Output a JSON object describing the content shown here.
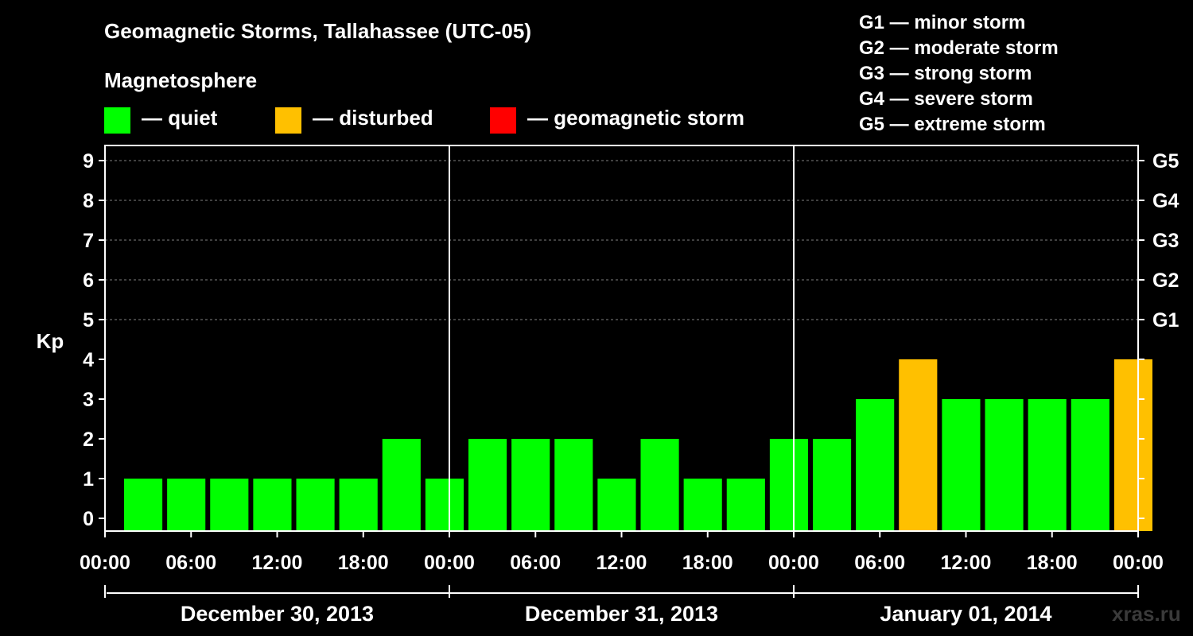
{
  "header": {
    "title": "Geomagnetic Storms, Tallahassee (UTC-05)",
    "subtitle": "Magnetosphere"
  },
  "legend": [
    {
      "label": "— quiet",
      "color": "#00ff00"
    },
    {
      "label": "— disturbed",
      "color": "#ffc000"
    },
    {
      "label": "— geomagnetic storm",
      "color": "#ff0000"
    }
  ],
  "storm_levels": [
    "G1 — minor storm",
    "G2 — moderate storm",
    "G3 — strong storm",
    "G4 — severe storm",
    "G5 — extreme storm"
  ],
  "watermark": "xras.ru",
  "chart_data": {
    "type": "bar",
    "ylabel": "Kp",
    "ylim": [
      0,
      9
    ],
    "yticks": [
      "0",
      "1",
      "2",
      "3",
      "4",
      "5",
      "6",
      "7",
      "8",
      "9"
    ],
    "right_ticks": [
      {
        "kp": 5,
        "label": "G1"
      },
      {
        "kp": 6,
        "label": "G2"
      },
      {
        "kp": 7,
        "label": "G3"
      },
      {
        "kp": 8,
        "label": "G4"
      },
      {
        "kp": 9,
        "label": "G5"
      }
    ],
    "grid": "dashed horizontal at Kp 5–9",
    "x_tick_labels": [
      "00:00",
      "06:00",
      "12:00",
      "18:00",
      "00:00",
      "06:00",
      "12:00",
      "18:00",
      "00:00",
      "06:00",
      "12:00",
      "18:00",
      "00:00"
    ],
    "days": [
      "December 30, 2013",
      "December 31, 2013",
      "January 01, 2014"
    ],
    "interval_hours": 3,
    "values": [
      1,
      1,
      1,
      1,
      1,
      1,
      2,
      1,
      2,
      2,
      2,
      1,
      2,
      1,
      1,
      2,
      2,
      3,
      4,
      3,
      3,
      3,
      3,
      4
    ],
    "colors": {
      "quiet": "#00ff00",
      "disturbed": "#ffc000",
      "storm": "#ff0000"
    }
  }
}
